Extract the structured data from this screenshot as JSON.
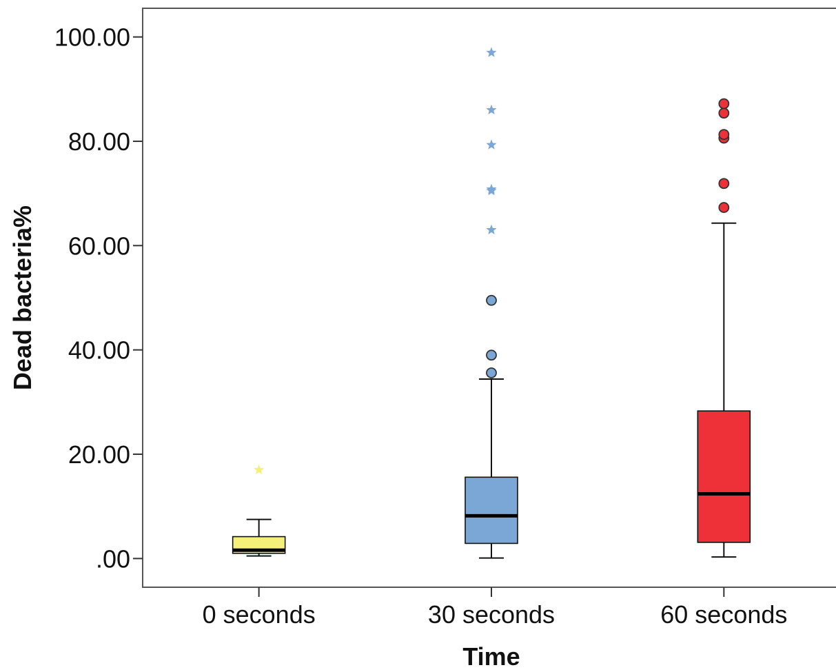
{
  "chart_data": {
    "type": "boxplot",
    "title": "",
    "xlabel": "Time",
    "ylabel": "Dead bacteria%",
    "ylim": [
      -5.5,
      105.5
    ],
    "yticks": [
      0,
      20,
      40,
      60,
      80,
      100
    ],
    "ytick_labels": [
      ".00",
      "20.00",
      "40.00",
      "60.00",
      "80.00",
      "100.00"
    ],
    "grid": false,
    "legend": "none",
    "categories": [
      "0 seconds",
      "30 seconds",
      "60 seconds"
    ],
    "boxes": [
      {
        "category": "0 seconds",
        "color": "#F5F07A",
        "whisker_low": 0.5,
        "q1": 1.0,
        "median": 1.6,
        "q3": 4.2,
        "whisker_high": 7.5,
        "outliers": [],
        "extremes": [
          17.0
        ],
        "outlier_color": "#F5F07A"
      },
      {
        "category": "30 seconds",
        "color": "#7BA7D6",
        "whisker_low": 0.1,
        "q1": 2.9,
        "median": 8.2,
        "q3": 15.6,
        "whisker_high": 34.4,
        "outliers": [
          35.6,
          39.0,
          49.5
        ],
        "extremes": [
          63.0,
          70.5,
          70.8,
          79.3,
          86.0,
          97.0
        ],
        "outlier_color": "#7BA7D6"
      },
      {
        "category": "60 seconds",
        "color": "#EE3138",
        "whisker_low": 0.3,
        "q1": 3.1,
        "median": 12.4,
        "q3": 28.3,
        "whisker_high": 64.3,
        "outliers": [
          67.3,
          71.9,
          80.6,
          81.3,
          85.4,
          87.2
        ],
        "extremes": [],
        "outlier_color": "#EE3138"
      }
    ]
  }
}
